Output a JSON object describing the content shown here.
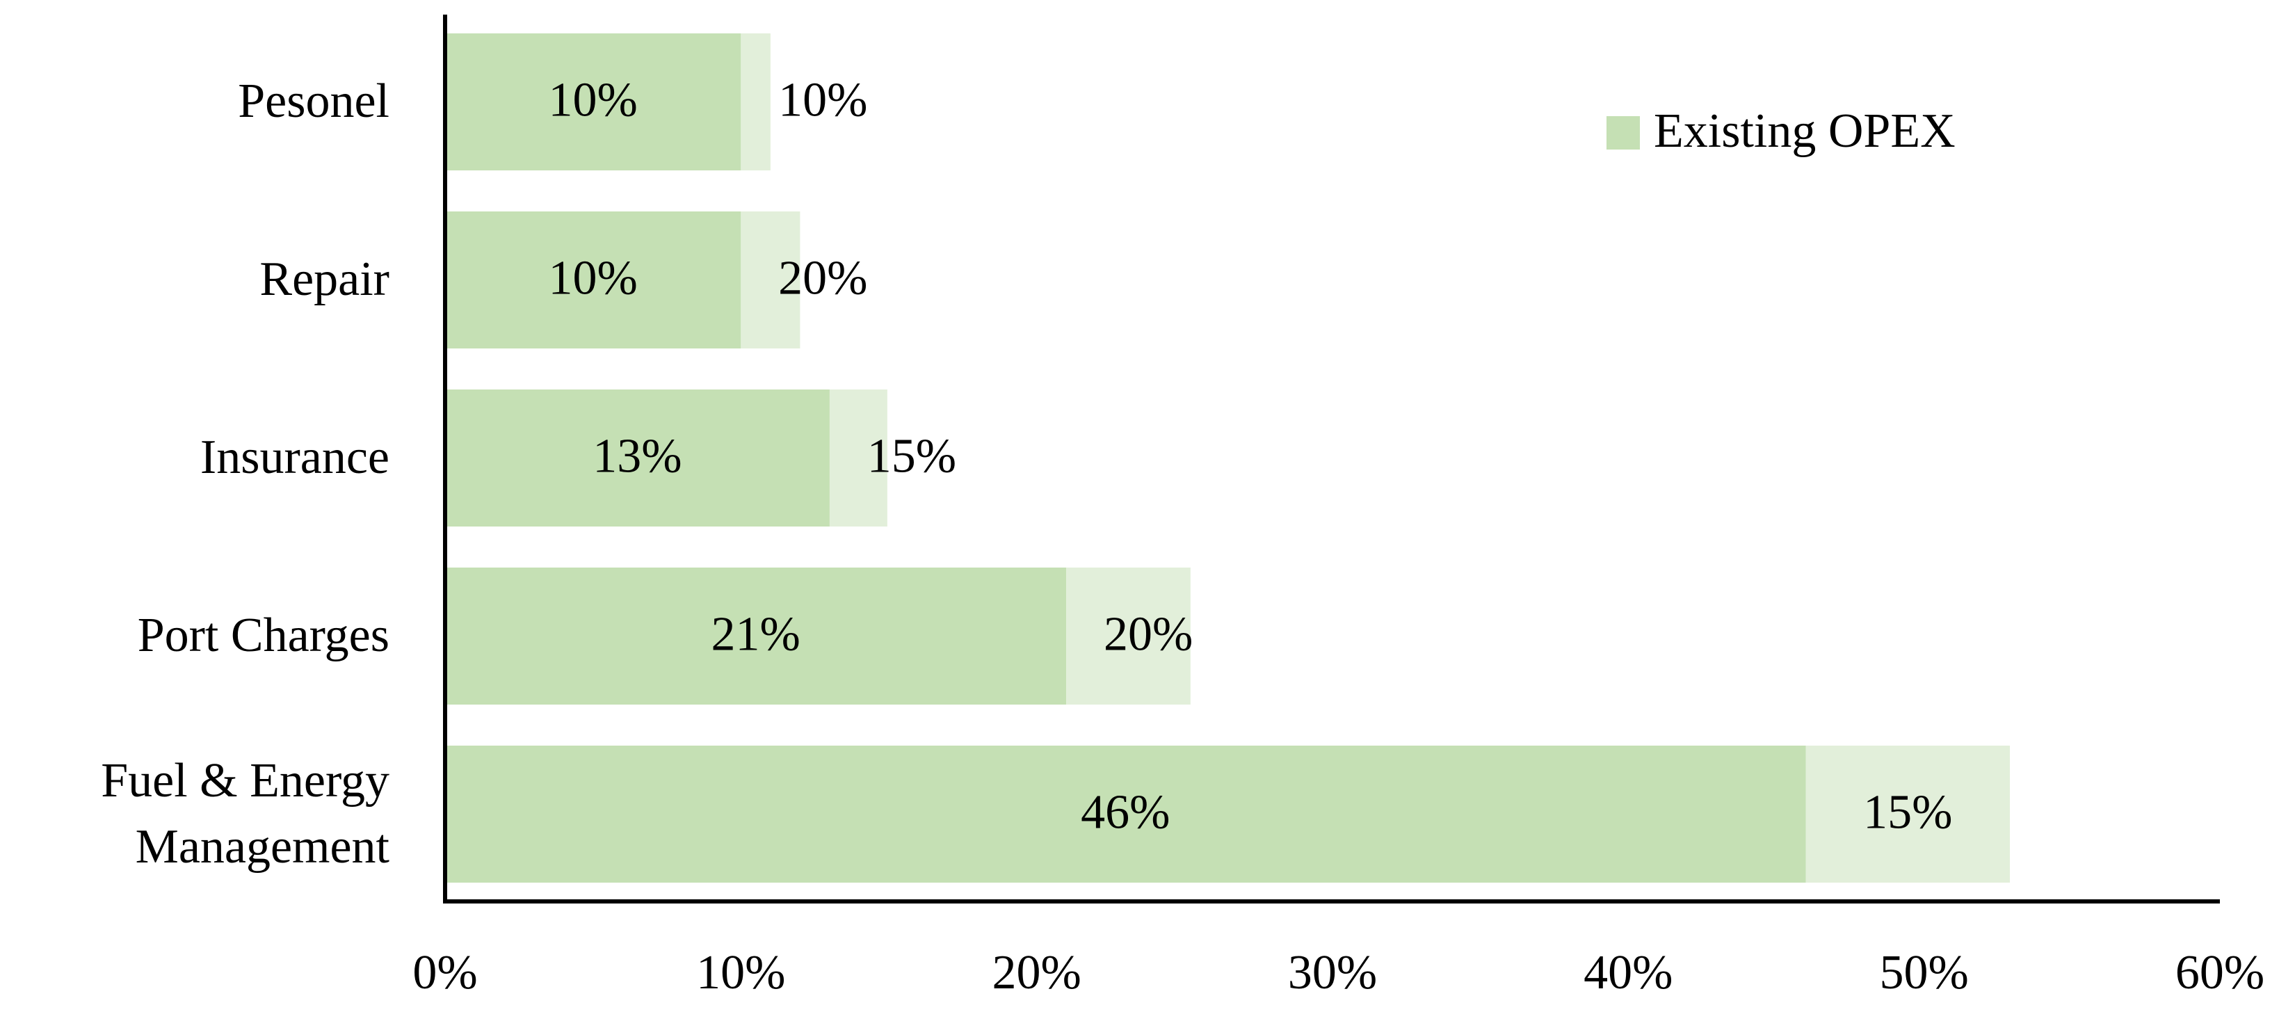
{
  "chart_data": {
    "type": "stacked-bar-horizontal",
    "categories": [
      "Pesonel",
      "Repair",
      "Insurance",
      "Port Charges",
      "Fuel & Energy Management"
    ],
    "series": [
      {
        "name": "Existing OPEX",
        "color": "#c5e0b4",
        "values": [
          10,
          10,
          13,
          21,
          46
        ],
        "value_labels": [
          "10%",
          "10%",
          "13%",
          "21%",
          "46%"
        ]
      },
      {
        "color": "#e2efda",
        "values": [
          1,
          2,
          1.95,
          4.2,
          6.9
        ]
      }
    ],
    "segment_annotations": [
      "10%",
      "20%",
      "15%",
      "20%",
      "15%"
    ],
    "xlim": [
      0,
      60
    ],
    "xticks": [
      {
        "value": 0,
        "label": "0%"
      },
      {
        "value": 10,
        "label": "10%"
      },
      {
        "value": 20,
        "label": "20%"
      },
      {
        "value": 30,
        "label": "30%"
      },
      {
        "value": 40,
        "label": "40%"
      },
      {
        "value": 50,
        "label": "50%"
      },
      {
        "value": 60,
        "label": "60%"
      }
    ],
    "legend": "top-right"
  }
}
